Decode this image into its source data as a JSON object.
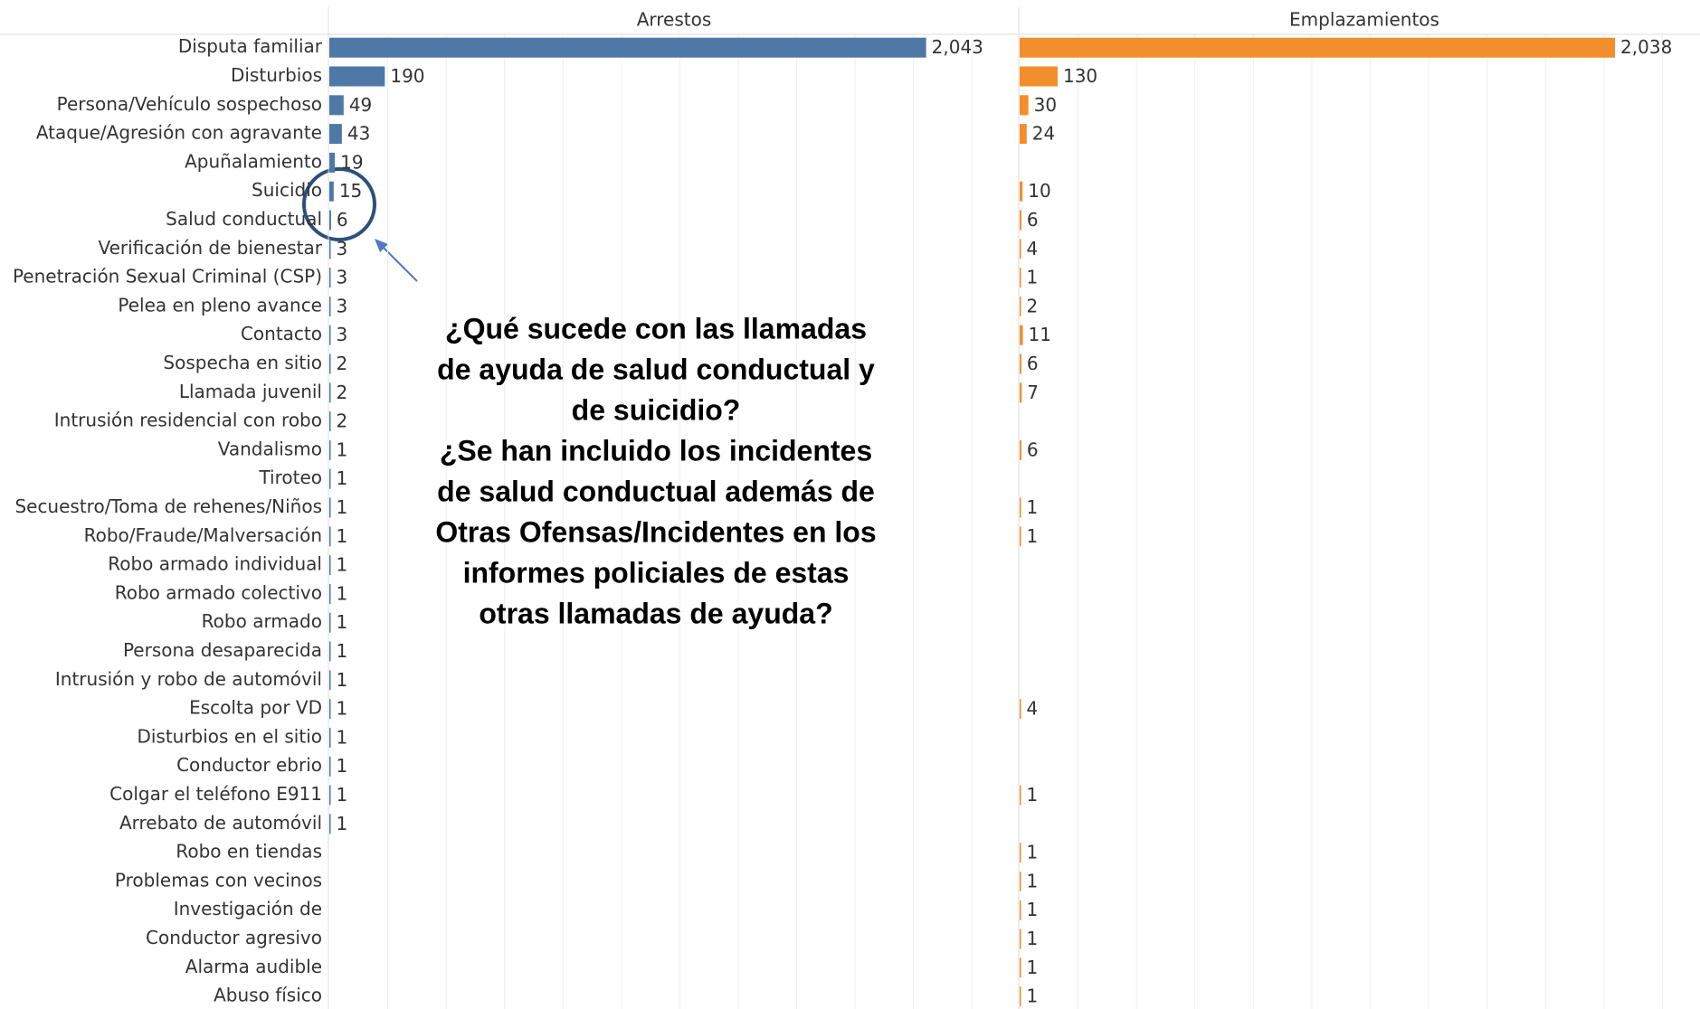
{
  "chart_data": {
    "type": "bar",
    "orientation": "horizontal",
    "categories": [
      "Disputa familiar",
      "Disturbios",
      "Persona/Vehículo sospechoso",
      "Ataque/Agresión con agravante",
      "Apuñalamiento",
      "Suicidio",
      "Salud conductual",
      "Verificación de bienestar",
      "Penetración Sexual Criminal (CSP)",
      "Pelea en pleno avance",
      "Contacto",
      "Sospecha en sitio",
      "Llamada juvenil",
      "Intrusión residencial con robo",
      "Vandalismo",
      "Tiroteo",
      "Secuestro/Toma de rehenes/Niños",
      "Robo/Fraude/Malversación",
      "Robo armado individual",
      "Robo armado colectivo",
      "Robo armado",
      "Persona desaparecida",
      "Intrusión y robo de automóvil",
      "Escolta por VD",
      "Disturbios en el sitio",
      "Conductor ebrio",
      "Colgar el teléfono E911",
      "Arrebato de automóvil",
      "Robo en tiendas",
      "Problemas con vecinos",
      "Investigación de",
      "Conductor agresivo",
      "Alarma audible",
      "Abuso físico"
    ],
    "series": [
      {
        "name": "Arrestos",
        "color": "#4e79a7",
        "values": [
          2043,
          190,
          49,
          43,
          19,
          15,
          6,
          3,
          3,
          3,
          3,
          2,
          2,
          2,
          1,
          1,
          1,
          1,
          1,
          1,
          1,
          1,
          1,
          1,
          1,
          1,
          1,
          1,
          null,
          null,
          null,
          null,
          null,
          null
        ],
        "value_labels": [
          "2,043",
          "190",
          "49",
          "43",
          "19",
          "15",
          "6",
          "3",
          "3",
          "3",
          "3",
          "2",
          "2",
          "2",
          "1",
          "1",
          "1",
          "1",
          "1",
          "1",
          "1",
          "1",
          "1",
          "1",
          "1",
          "1",
          "1",
          "1",
          null,
          null,
          null,
          null,
          null,
          null
        ]
      },
      {
        "name": "Emplazamientos",
        "color": "#f28e2b",
        "values": [
          2038,
          130,
          30,
          24,
          null,
          10,
          6,
          4,
          1,
          2,
          11,
          6,
          7,
          null,
          6,
          null,
          1,
          1,
          null,
          null,
          null,
          null,
          null,
          4,
          null,
          null,
          1,
          null,
          1,
          1,
          1,
          1,
          1,
          1
        ],
        "value_labels": [
          "2,038",
          "130",
          "30",
          "24",
          null,
          "10",
          "6",
          "4",
          "1",
          "2",
          "11",
          "6",
          "7",
          null,
          "6",
          null,
          "1",
          "1",
          null,
          null,
          null,
          null,
          null,
          "4",
          null,
          null,
          "1",
          null,
          "1",
          "1",
          "1",
          "1",
          "1",
          "1"
        ]
      }
    ],
    "xlim": [
      0,
      2360
    ],
    "xticks": [
      0,
      200,
      400,
      600,
      800,
      1000,
      1200,
      1400,
      1600,
      1800,
      2000,
      2200
    ],
    "grid": true,
    "annotation": [
      "¿Qué sucede con las llamadas",
      "de ayuda de salud conductual y",
      "de suicidio?",
      "¿Se han incluido los incidentes",
      "de salud conductual además de",
      "Otras Ofensas/Incidentes en los",
      "informes policiales de estas",
      "otras llamadas de ayuda?"
    ]
  }
}
